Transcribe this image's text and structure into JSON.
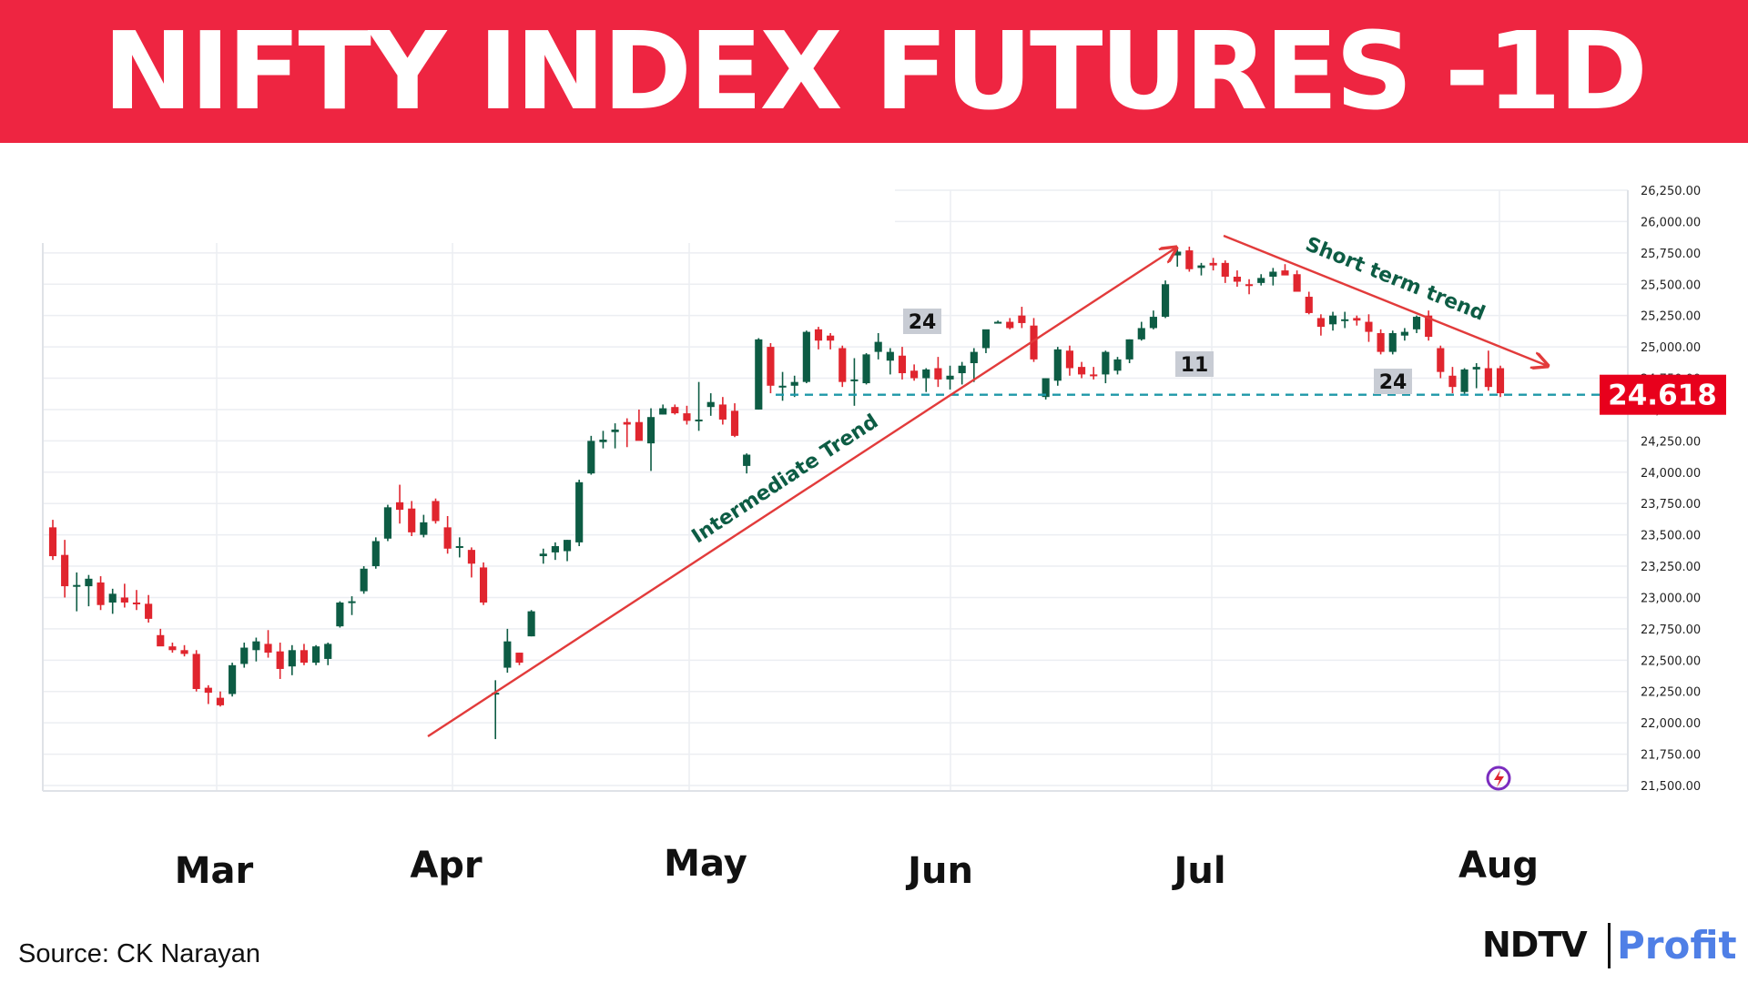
{
  "header": {
    "title": "NIFTY INDEX FUTURES -1D",
    "bg_color": "#ee2541"
  },
  "source": "Source: CK Narayan",
  "logo": {
    "part1": "NDTV",
    "part2": "Profit",
    "part2_color": "#4f7fe6"
  },
  "chart_data": {
    "type": "candlestick",
    "title": "NIFTY INDEX FUTURES -1D",
    "x_axis_labels": [
      "Mar",
      "Apr",
      "May",
      "Jun",
      "Jul",
      "Aug"
    ],
    "y_ticks": [
      "21,500.00",
      "21,750.00",
      "22,000.00",
      "22,250.00",
      "22,500.00",
      "22,750.00",
      "23,000.00",
      "23,250.00",
      "23,500.00",
      "23,750.00",
      "24,000.00",
      "24,250.00",
      "24,500.00",
      "24,750.00",
      "25,000.00",
      "25,250.00",
      "25,500.00",
      "25,750.00",
      "26,000.00",
      "26,250.00"
    ],
    "y_tick_values": [
      21500,
      21750,
      22000,
      22250,
      22500,
      22750,
      23000,
      23250,
      23500,
      23750,
      24000,
      24250,
      24500,
      24750,
      25000,
      25250,
      25500,
      25750,
      26000,
      26250
    ],
    "ylim": [
      21500,
      26250
    ],
    "grid": true,
    "colors": {
      "up": "#0d5c44",
      "down": "#e0252e",
      "trend": "#e23b3b",
      "level": "#1e98a8",
      "label_bg": "#e8001c"
    },
    "current_price_label": "24.618",
    "current_price_value": 24618,
    "annotations": [
      {
        "text": "Intermediate Trend",
        "color": "#0d5c44"
      },
      {
        "text": "Short term trend",
        "color": "#0d5c44"
      },
      {
        "text": "24",
        "kind": "count-box",
        "at": 25200
      },
      {
        "text": "11",
        "kind": "count-box",
        "at": 24760
      },
      {
        "text": "24",
        "kind": "count-box",
        "at": 24620
      }
    ],
    "candles": [
      [
        23560,
        23620,
        23300,
        23330
      ],
      [
        23340,
        23460,
        23000,
        23090
      ],
      [
        23100,
        23200,
        22890,
        23100
      ],
      [
        23090,
        23180,
        22930,
        23150
      ],
      [
        23120,
        23170,
        22900,
        22940
      ],
      [
        22960,
        23070,
        22870,
        23030
      ],
      [
        23000,
        23110,
        22920,
        22960
      ],
      [
        22960,
        23060,
        22900,
        22950
      ],
      [
        22950,
        23020,
        22800,
        22830
      ],
      [
        22700,
        22750,
        22620,
        22610
      ],
      [
        22610,
        22640,
        22560,
        22580
      ],
      [
        22580,
        22620,
        22530,
        22550
      ],
      [
        22550,
        22580,
        22250,
        22270
      ],
      [
        22280,
        22300,
        22150,
        22240
      ],
      [
        22200,
        22250,
        22130,
        22140
      ],
      [
        22230,
        22480,
        22210,
        22460
      ],
      [
        22470,
        22640,
        22440,
        22600
      ],
      [
        22580,
        22680,
        22490,
        22650
      ],
      [
        22630,
        22740,
        22520,
        22560
      ],
      [
        22570,
        22640,
        22350,
        22430
      ],
      [
        22450,
        22620,
        22380,
        22580
      ],
      [
        22580,
        22630,
        22460,
        22480
      ],
      [
        22480,
        22620,
        22460,
        22610
      ],
      [
        22510,
        22640,
        22460,
        22630
      ],
      [
        22770,
        22970,
        22760,
        22960
      ],
      [
        22960,
        23010,
        22860,
        22970
      ],
      [
        23050,
        23250,
        23030,
        23230
      ],
      [
        23250,
        23480,
        23230,
        23450
      ],
      [
        23470,
        23740,
        23450,
        23720
      ],
      [
        23760,
        23900,
        23590,
        23700
      ],
      [
        23710,
        23770,
        23490,
        23520
      ],
      [
        23500,
        23660,
        23480,
        23600
      ],
      [
        23770,
        23790,
        23590,
        23610
      ],
      [
        23560,
        23650,
        23350,
        23390
      ],
      [
        23400,
        23480,
        23320,
        23410
      ],
      [
        23380,
        23400,
        23160,
        23270
      ],
      [
        23240,
        23280,
        22940,
        22960
      ],
      [
        22230,
        22340,
        21870,
        22240
      ],
      [
        22440,
        22750,
        22400,
        22650
      ],
      [
        22560,
        22560,
        22460,
        22480
      ],
      [
        22690,
        22900,
        22690,
        22890
      ],
      [
        23330,
        23390,
        23270,
        23350
      ],
      [
        23360,
        23440,
        23300,
        23410
      ],
      [
        23370,
        23460,
        23290,
        23460
      ],
      [
        23440,
        23940,
        23410,
        23920
      ],
      [
        23990,
        24290,
        23980,
        24250
      ],
      [
        24240,
        24330,
        24190,
        24260
      ],
      [
        24320,
        24390,
        24190,
        24340
      ],
      [
        24400,
        24430,
        24200,
        24380
      ],
      [
        24400,
        24500,
        24280,
        24250
      ],
      [
        24230,
        24510,
        24010,
        24440
      ],
      [
        24460,
        24540,
        24460,
        24510
      ],
      [
        24520,
        24540,
        24460,
        24470
      ],
      [
        24470,
        24530,
        24380,
        24410
      ],
      [
        24410,
        24720,
        24330,
        24420
      ],
      [
        24520,
        24630,
        24450,
        24560
      ],
      [
        24540,
        24600,
        24380,
        24420
      ],
      [
        24490,
        24550,
        24280,
        24290
      ],
      [
        24050,
        24150,
        23990,
        24140
      ],
      [
        24500,
        25070,
        24500,
        25060
      ],
      [
        25000,
        25030,
        24630,
        24690
      ],
      [
        24690,
        24800,
        24570,
        24690
      ],
      [
        24690,
        24770,
        24600,
        24720
      ],
      [
        24720,
        25130,
        24710,
        25120
      ],
      [
        25140,
        25160,
        24980,
        25050
      ],
      [
        25090,
        25110,
        24980,
        25050
      ],
      [
        24990,
        25010,
        24680,
        24720
      ],
      [
        24730,
        24910,
        24530,
        24740
      ],
      [
        24710,
        24950,
        24700,
        24940
      ],
      [
        24960,
        25110,
        24900,
        25040
      ],
      [
        24890,
        24990,
        24780,
        24960
      ],
      [
        24930,
        25000,
        24740,
        24790
      ],
      [
        24810,
        24860,
        24730,
        24750
      ],
      [
        24750,
        24830,
        24640,
        24820
      ],
      [
        24830,
        24920,
        24680,
        24740
      ],
      [
        24740,
        24850,
        24660,
        24770
      ],
      [
        24790,
        24880,
        24700,
        24850
      ],
      [
        24870,
        24990,
        24720,
        24960
      ],
      [
        24990,
        25130,
        24950,
        25140
      ],
      [
        25200,
        25210,
        25190,
        25200
      ],
      [
        25200,
        25230,
        25140,
        25150
      ],
      [
        25250,
        25320,
        25150,
        25190
      ],
      [
        25170,
        25230,
        24880,
        24900
      ],
      [
        24600,
        24750,
        24580,
        24750
      ],
      [
        24730,
        25000,
        24690,
        24980
      ],
      [
        24970,
        25010,
        24770,
        24830
      ],
      [
        24840,
        24880,
        24750,
        24780
      ],
      [
        24780,
        24840,
        24740,
        24770
      ],
      [
        24780,
        24970,
        24710,
        24960
      ],
      [
        24810,
        24920,
        24780,
        24900
      ],
      [
        24900,
        25060,
        24870,
        25060
      ],
      [
        25060,
        25200,
        25050,
        25150
      ],
      [
        25150,
        25290,
        25140,
        25240
      ],
      [
        25240,
        25530,
        25230,
        25500
      ],
      [
        25730,
        25780,
        25640,
        25760
      ],
      [
        25770,
        25800,
        25600,
        25620
      ],
      [
        25630,
        25670,
        25570,
        25650
      ],
      [
        25670,
        25710,
        25610,
        25650
      ],
      [
        25670,
        25690,
        25510,
        25560
      ],
      [
        25560,
        25610,
        25480,
        25520
      ],
      [
        25500,
        25540,
        25420,
        25490
      ],
      [
        25510,
        25580,
        25490,
        25550
      ],
      [
        25560,
        25630,
        25490,
        25600
      ],
      [
        25610,
        25660,
        25580,
        25570
      ],
      [
        25580,
        25610,
        25470,
        25440
      ],
      [
        25400,
        25440,
        25260,
        25270
      ],
      [
        25230,
        25260,
        25090,
        25160
      ],
      [
        25180,
        25280,
        25130,
        25250
      ],
      [
        25220,
        25280,
        25150,
        25220
      ],
      [
        25230,
        25250,
        25170,
        25210
      ],
      [
        25200,
        25260,
        25040,
        25120
      ],
      [
        25110,
        25140,
        24940,
        24960
      ],
      [
        24960,
        25130,
        24940,
        25110
      ],
      [
        25090,
        25150,
        25050,
        25120
      ],
      [
        25140,
        25250,
        25110,
        25240
      ],
      [
        25250,
        25290,
        25050,
        25080
      ],
      [
        24990,
        25010,
        24750,
        24800
      ],
      [
        24770,
        24840,
        24630,
        24680
      ],
      [
        24640,
        24830,
        24620,
        24820
      ],
      [
        24820,
        24870,
        24670,
        24840
      ],
      [
        24830,
        24970,
        24650,
        24680
      ],
      [
        24830,
        24850,
        24600,
        24630
      ]
    ]
  }
}
